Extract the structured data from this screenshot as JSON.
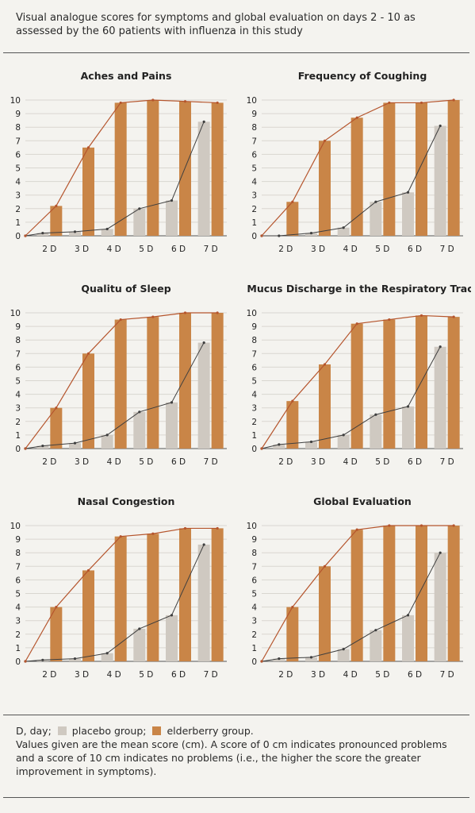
{
  "header": {
    "title": "Visual analogue scores for symptoms and global evaluation on days 2 - 10 as assessed by the 60 patients with influenza in this study"
  },
  "colors": {
    "placebo_bar": "#cfc9c1",
    "elderberry_bar": "#c98547",
    "placebo_line": "#3f3f3f",
    "elderberry_line": "#b5552d",
    "grid": "#d9d6d0"
  },
  "footer": {
    "legend_prefix": "D, day;",
    "placebo_label": "placebo group;",
    "elderberry_label": "elderberry group.",
    "note": "Values given are the mean score (cm). A score of 0 cm indicates pronounced problems and a score of 10 cm indicates no problems (i.e., the higher the score the greater improvement in symptoms)."
  },
  "chart_data": [
    {
      "type": "bar",
      "title": "Aches and Pains",
      "categories": [
        "2 D",
        "3 D",
        "4 D",
        "5 D",
        "6 D",
        "7 D"
      ],
      "ylim": [
        0,
        10
      ],
      "yticks": [
        0,
        1,
        2,
        3,
        4,
        5,
        6,
        7,
        8,
        9,
        10
      ],
      "series": [
        {
          "name": "placebo group",
          "values": [
            0.2,
            0.3,
            0.5,
            2.0,
            2.6,
            8.4
          ]
        },
        {
          "name": "elderberry group",
          "values": [
            2.2,
            6.5,
            9.8,
            10.0,
            9.9,
            9.8
          ]
        }
      ]
    },
    {
      "type": "bar",
      "title": "Frequency of Coughing",
      "categories": [
        "2 D",
        "3 D",
        "4 D",
        "5 D",
        "6 D",
        "7 D"
      ],
      "ylim": [
        0,
        10
      ],
      "yticks": [
        0,
        1,
        2,
        3,
        4,
        5,
        6,
        7,
        8,
        9,
        10
      ],
      "series": [
        {
          "name": "placebo group",
          "values": [
            0.0,
            0.2,
            0.6,
            2.5,
            3.2,
            8.1
          ]
        },
        {
          "name": "elderberry group",
          "values": [
            2.5,
            7.0,
            8.7,
            9.8,
            9.8,
            10.0
          ]
        }
      ]
    },
    {
      "type": "bar",
      "title": "Qualitu of Sleep",
      "categories": [
        "2 D",
        "3 D",
        "4 D",
        "5 D",
        "6 D",
        "7 D"
      ],
      "ylim": [
        0,
        10
      ],
      "yticks": [
        0,
        1,
        2,
        3,
        4,
        5,
        6,
        7,
        8,
        9,
        10
      ],
      "series": [
        {
          "name": "placebo group",
          "values": [
            0.2,
            0.4,
            1.0,
            2.7,
            3.4,
            7.8
          ]
        },
        {
          "name": "elderberry group",
          "values": [
            3.0,
            7.0,
            9.5,
            9.7,
            10.0,
            10.0
          ]
        }
      ]
    },
    {
      "type": "bar",
      "title": "Mucus Discharge in the Respiratory Tract",
      "categories": [
        "2 D",
        "3 D",
        "4 D",
        "5 D",
        "6 D",
        "7 D"
      ],
      "ylim": [
        0,
        10
      ],
      "yticks": [
        0,
        1,
        2,
        3,
        4,
        5,
        6,
        7,
        8,
        9,
        10
      ],
      "series": [
        {
          "name": "placebo group",
          "values": [
            0.3,
            0.5,
            1.0,
            2.5,
            3.1,
            7.5
          ]
        },
        {
          "name": "elderberry group",
          "values": [
            3.5,
            6.2,
            9.2,
            9.5,
            9.8,
            9.7
          ]
        }
      ]
    },
    {
      "type": "bar",
      "title": "Nasal Congestion",
      "categories": [
        "2 D",
        "3 D",
        "4 D",
        "5 D",
        "6 D",
        "7 D"
      ],
      "ylim": [
        0,
        10
      ],
      "yticks": [
        0,
        1,
        2,
        3,
        4,
        5,
        6,
        7,
        8,
        9,
        10
      ],
      "series": [
        {
          "name": "placebo group",
          "values": [
            0.1,
            0.2,
            0.6,
            2.4,
            3.4,
            8.6
          ]
        },
        {
          "name": "elderberry group",
          "values": [
            4.0,
            6.7,
            9.2,
            9.4,
            9.8,
            9.8
          ]
        }
      ]
    },
    {
      "type": "bar",
      "title": "Global Evaluation",
      "categories": [
        "2 D",
        "3 D",
        "4 D",
        "5 D",
        "6 D",
        "7 D"
      ],
      "ylim": [
        0,
        10
      ],
      "yticks": [
        0,
        1,
        2,
        3,
        4,
        5,
        6,
        7,
        8,
        9,
        10
      ],
      "series": [
        {
          "name": "placebo group",
          "values": [
            0.2,
            0.3,
            0.9,
            2.3,
            3.4,
            8.0
          ]
        },
        {
          "name": "elderberry group",
          "values": [
            4.0,
            7.0,
            9.7,
            10.0,
            10.0,
            10.0
          ]
        }
      ]
    }
  ]
}
